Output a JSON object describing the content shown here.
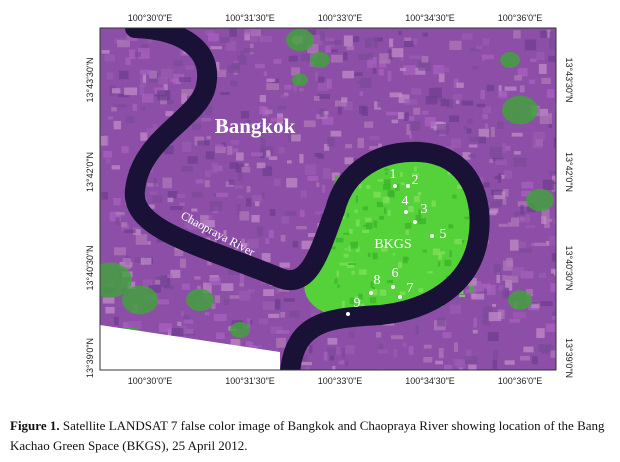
{
  "map": {
    "longitude_labels": [
      "100°30'0\"E",
      "100°31'30\"E",
      "100°33'0\"E",
      "100°34'30\"E",
      "100°36'0\"E"
    ],
    "latitude_labels": [
      "13°43'30\"N",
      "13°42'0\"N",
      "13°40'30\"N",
      "13°39'0\"N"
    ],
    "places": {
      "city": "Bangkok",
      "river": "Chaopraya River",
      "green_space": "BKGS"
    },
    "site_numbers": [
      "1",
      "2",
      "3",
      "4",
      "5",
      "6",
      "7",
      "8",
      "9"
    ]
  },
  "caption": {
    "label": "Figure 1.",
    "text": "Satellite LANDSAT 7 false color image of Bangkok and Chaopraya River showing location of the Bang Kachao Green Space (BKGS), 25 April 2012."
  }
}
